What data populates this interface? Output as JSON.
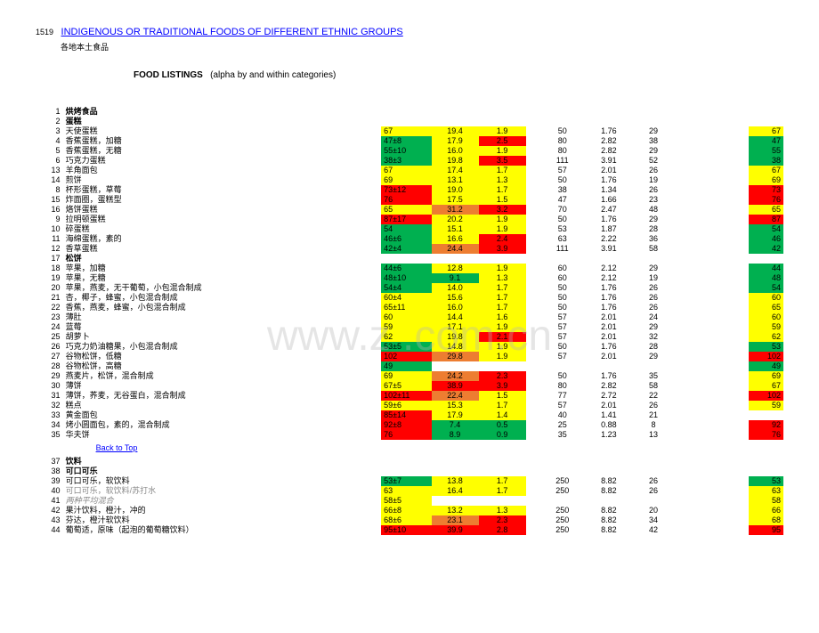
{
  "colors": {
    "green": "#00b050",
    "yellow": "#ffff00",
    "red": "#ff0000",
    "orange": "#ed7d31"
  },
  "header": {
    "num": "1519",
    "link": "INDIGENOUS OR TRADITIONAL FOODS OF DIFFERENT ETHNIC GROUPS",
    "sub": "各地本土食品"
  },
  "listing_title": {
    "bold": "FOOD LISTINGS",
    "rest": "(alpha by and within categories)"
  },
  "watermark": "www.z .com.cn",
  "back_to_top": "Back to Top",
  "rows": [
    {
      "n": "1",
      "name": "烘烤食品",
      "cat": true
    },
    {
      "n": "2",
      "name": "蛋糕",
      "cat": true
    },
    {
      "n": "3",
      "name": "天使蛋糕",
      "v1": "67",
      "c1": "yellow",
      "v2": "19.4",
      "c2": "yellow",
      "v3": "1.9",
      "c3": "yellow",
      "v4": "50",
      "v5": "1.76",
      "v6": "29",
      "v7": "67",
      "c7": "yellow"
    },
    {
      "n": "4",
      "name": "香蕉蛋糕，加糖",
      "v1": "47±8",
      "c1": "green",
      "v2": "17.9",
      "c2": "yellow",
      "v3": "2.5",
      "c3": "red",
      "v4": "80",
      "v5": "2.82",
      "v6": "38",
      "v7": "47",
      "c7": "green"
    },
    {
      "n": "5",
      "name": "香蕉蛋糕，无糖",
      "v1": "55±10",
      "c1": "green",
      "v2": "16.0",
      "c2": "yellow",
      "v3": "1.9",
      "c3": "yellow",
      "v4": "80",
      "v5": "2.82",
      "v6": "29",
      "v7": "55",
      "c7": "green"
    },
    {
      "n": "6",
      "name": "巧克力蛋糕",
      "v1": "38±3",
      "c1": "green",
      "v2": "19.8",
      "c2": "yellow",
      "v3": "3.5",
      "c3": "red",
      "v4": "111",
      "v5": "3.91",
      "v6": "52",
      "v7": "38",
      "c7": "green"
    },
    {
      "n": "13",
      "name": "羊角面包",
      "v1": "67",
      "c1": "yellow",
      "v2": "17.4",
      "c2": "yellow",
      "v3": "1.7",
      "c3": "yellow",
      "v4": "57",
      "v5": "2.01",
      "v6": "26",
      "v7": "67",
      "c7": "yellow"
    },
    {
      "n": "14",
      "name": "煎饼",
      "v1": "69",
      "c1": "yellow",
      "v2": "13.1",
      "c2": "yellow",
      "v3": "1.3",
      "c3": "yellow",
      "v4": "50",
      "v5": "1.76",
      "v6": "19",
      "v7": "69",
      "c7": "yellow"
    },
    {
      "n": "8",
      "name": "杯形蛋糕，草莓",
      "v1": "73±12",
      "c1": "red",
      "v2": "19.0",
      "c2": "yellow",
      "v3": "1.7",
      "c3": "yellow",
      "v4": "38",
      "v5": "1.34",
      "v6": "26",
      "v7": "73",
      "c7": "red"
    },
    {
      "n": "15",
      "name": "炸面圈，蛋糕型",
      "v1": "76",
      "c1": "red",
      "v2": "17.5",
      "c2": "yellow",
      "v3": "1.5",
      "c3": "yellow",
      "v4": "47",
      "v5": "1.66",
      "v6": "23",
      "v7": "76",
      "c7": "red"
    },
    {
      "n": "16",
      "name": "烙饼蛋糕",
      "v1": "65",
      "c1": "yellow",
      "v2": "31.2",
      "c2": "orange",
      "v3": "3.2",
      "c3": "red",
      "v4": "70",
      "v5": "2.47",
      "v6": "48",
      "v7": "65",
      "c7": "yellow"
    },
    {
      "n": "9",
      "name": "拉明顿蛋糕",
      "v1": "87±17",
      "c1": "red",
      "v2": "20.2",
      "c2": "yellow",
      "v3": "1.9",
      "c3": "yellow",
      "v4": "50",
      "v5": "1.76",
      "v6": "29",
      "v7": "87",
      "c7": "red"
    },
    {
      "n": "10",
      "name": "碎蛋糕",
      "v1": "54",
      "c1": "green",
      "v2": "15.1",
      "c2": "yellow",
      "v3": "1.9",
      "c3": "yellow",
      "v4": "53",
      "v5": "1.87",
      "v6": "28",
      "v7": "54",
      "c7": "green"
    },
    {
      "n": "11",
      "name": "海绵蛋糕，素的",
      "v1": "46±6",
      "c1": "green",
      "v2": "16.6",
      "c2": "yellow",
      "v3": "2.4",
      "c3": "red",
      "v4": "63",
      "v5": "2.22",
      "v6": "36",
      "v7": "46",
      "c7": "green"
    },
    {
      "n": "12",
      "name": "香草蛋糕",
      "v1": "42±4",
      "c1": "green",
      "v2": "24.4",
      "c2": "orange",
      "v3": "3.9",
      "c3": "red",
      "v4": "111",
      "v5": "3.91",
      "v6": "58",
      "v7": "42",
      "c7": "green"
    },
    {
      "n": "17",
      "name": "松饼",
      "cat": true
    },
    {
      "n": "18",
      "name": "苹果，加糖",
      "v1": "44±6",
      "c1": "green",
      "v2": "12.8",
      "c2": "yellow",
      "v3": "1.9",
      "c3": "yellow",
      "v4": "60",
      "v5": "2.12",
      "v6": "29",
      "v7": "44",
      "c7": "green"
    },
    {
      "n": "19",
      "name": "苹果，无糖",
      "v1": "48±10",
      "c1": "green",
      "v2": "9.1",
      "c2": "green",
      "v3": "1.3",
      "c3": "yellow",
      "v4": "60",
      "v5": "2.12",
      "v6": "19",
      "v7": "48",
      "c7": "green"
    },
    {
      "n": "20",
      "name": "苹果，燕麦，无干葡萄，小包混合制成",
      "v1": "54±4",
      "c1": "green",
      "v2": "14.0",
      "c2": "yellow",
      "v3": "1.7",
      "c3": "yellow",
      "v4": "50",
      "v5": "1.76",
      "v6": "26",
      "v7": "54",
      "c7": "green"
    },
    {
      "n": "21",
      "name": "杏，椰子，蜂蜜，小包混合制成",
      "v1": "60±4",
      "c1": "yellow",
      "v2": "15.6",
      "c2": "yellow",
      "v3": "1.7",
      "c3": "yellow",
      "v4": "50",
      "v5": "1.76",
      "v6": "26",
      "v7": "60",
      "c7": "yellow"
    },
    {
      "n": "22",
      "name": "香蕉，燕麦，蜂蜜，小包混合制成",
      "v1": "65±11",
      "c1": "yellow",
      "v2": "16.0",
      "c2": "yellow",
      "v3": "1.7",
      "c3": "yellow",
      "v4": "50",
      "v5": "1.76",
      "v6": "26",
      "v7": "65",
      "c7": "yellow"
    },
    {
      "n": "23",
      "name": "薄肚",
      "v1": "60",
      "c1": "yellow",
      "v2": "14.4",
      "c2": "yellow",
      "v3": "1.6",
      "c3": "yellow",
      "v4": "57",
      "v5": "2.01",
      "v6": "24",
      "v7": "60",
      "c7": "yellow"
    },
    {
      "n": "24",
      "name": "蓝莓",
      "v1": "59",
      "c1": "yellow",
      "v2": "17.1",
      "c2": "yellow",
      "v3": "1.9",
      "c3": "yellow",
      "v4": "57",
      "v5": "2.01",
      "v6": "29",
      "v7": "59",
      "c7": "yellow"
    },
    {
      "n": "25",
      "name": "胡萝卜",
      "v1": "62",
      "c1": "yellow",
      "v2": "19.8",
      "c2": "yellow",
      "v3": "2.1",
      "c3": "red",
      "v4": "57",
      "v5": "2.01",
      "v6": "32",
      "v7": "62",
      "c7": "yellow"
    },
    {
      "n": "26",
      "name": "巧克力奶油糖果，小包混合制成",
      "v1": "53±5",
      "c1": "green",
      "v2": "14.8",
      "c2": "yellow",
      "v3": "1.9",
      "c3": "yellow",
      "v4": "50",
      "v5": "1.76",
      "v6": "28",
      "v7": "53",
      "c7": "green"
    },
    {
      "n": "27",
      "name": "谷物松饼，低糖",
      "v1": "102",
      "c1": "red",
      "v2": "29.8",
      "c2": "orange",
      "v3": "1.9",
      "c3": "yellow",
      "v4": "57",
      "v5": "2.01",
      "v6": "29",
      "v7": "102",
      "c7": "red"
    },
    {
      "n": "28",
      "name": "谷物松饼，高糖",
      "v1": "49",
      "c1": "green",
      "v2": "",
      "c2": "",
      "v3": "",
      "c3": "",
      "v4": "",
      "v5": "",
      "v6": "",
      "v7": "49",
      "c7": "green"
    },
    {
      "n": "29",
      "name": "燕麦片，松饼，混合制成",
      "v1": "69",
      "c1": "yellow",
      "v2": "24.2",
      "c2": "orange",
      "v3": "2.3",
      "c3": "red",
      "v4": "50",
      "v5": "1.76",
      "v6": "35",
      "v7": "69",
      "c7": "yellow"
    },
    {
      "n": "30",
      "name": "薄饼",
      "v1": "67±5",
      "c1": "yellow",
      "v2": "38.9",
      "c2": "red",
      "v3": "3.9",
      "c3": "red",
      "v4": "80",
      "v5": "2.82",
      "v6": "58",
      "v7": "67",
      "c7": "yellow"
    },
    {
      "n": "31",
      "name": "薄饼，荞麦，无谷蛋白，混合制成",
      "v1": "102±11",
      "c1": "red",
      "v2": "22.4",
      "c2": "orange",
      "v3": "1.5",
      "c3": "yellow",
      "v4": "77",
      "v5": "2.72",
      "v6": "22",
      "v7": "102",
      "c7": "red"
    },
    {
      "n": "32",
      "name": "糕点",
      "v1": "59±6",
      "c1": "yellow",
      "v2": "15.3",
      "c2": "yellow",
      "v3": "1.7",
      "c3": "yellow",
      "v4": "57",
      "v5": "2.01",
      "v6": "26",
      "v7": "59",
      "c7": "yellow"
    },
    {
      "n": "33",
      "name": "黄金面包",
      "v1": "85±14",
      "c1": "red",
      "v2": "17.9",
      "c2": "yellow",
      "v3": "1.4",
      "c3": "yellow",
      "v4": "40",
      "v5": "1.41",
      "v6": "21",
      "v7": "",
      "c7": ""
    },
    {
      "n": "34",
      "name": "烤小圆面包，素的，混合制成",
      "v1": "92±8",
      "c1": "red",
      "v2": "7.4",
      "c2": "green",
      "v3": "0.5",
      "c3": "green",
      "v4": "25",
      "v5": "0.88",
      "v6": "8",
      "v7": "92",
      "c7": "red"
    },
    {
      "n": "35",
      "name": "华夫饼",
      "v1": "76",
      "c1": "red",
      "v2": "8.9",
      "c2": "green",
      "v3": "0.9",
      "c3": "green",
      "v4": "35",
      "v5": "1.23",
      "v6": "13",
      "v7": "76",
      "c7": "red"
    },
    {
      "n": "",
      "name": "",
      "back": true
    },
    {
      "n": "37",
      "name": "饮料",
      "cat": true
    },
    {
      "n": "38",
      "name": "可口可乐",
      "cat": true
    },
    {
      "n": "39",
      "name": "可口可乐，软饮料",
      "v1": "53±7",
      "c1": "green",
      "v2": "13.8",
      "c2": "yellow",
      "v3": "1.7",
      "c3": "yellow",
      "v4": "250",
      "v5": "8.82",
      "v6": "26",
      "v7": "53",
      "c7": "green"
    },
    {
      "n": "40",
      "name": "可口可乐，软饮料/苏打水",
      "muted": true,
      "v1": "63",
      "c1": "yellow",
      "v2": "16.4",
      "c2": "yellow",
      "v3": "1.7",
      "c3": "yellow",
      "v4": "250",
      "v5": "8.82",
      "v6": "26",
      "v7": "63",
      "c7": "yellow"
    },
    {
      "n": "41",
      "name": "两种平均混合",
      "muted": true,
      "italic": true,
      "v1": "58±5",
      "c1": "yellow",
      "v2": "",
      "c2": "",
      "v3": "",
      "c3": "",
      "v4": "",
      "v5": "",
      "v6": "",
      "v7": "58",
      "c7": "yellow"
    },
    {
      "n": "42",
      "name": "果汁饮料，橙汁，冲的",
      "v1": "66±8",
      "c1": "yellow",
      "v2": "13.2",
      "c2": "yellow",
      "v3": "1.3",
      "c3": "yellow",
      "v4": "250",
      "v5": "8.82",
      "v6": "20",
      "v7": "66",
      "c7": "yellow"
    },
    {
      "n": "43",
      "name": "芬达，橙汁软饮料",
      "v1": "68±6",
      "c1": "yellow",
      "v2": "23.1",
      "c2": "orange",
      "v3": "2.3",
      "c3": "red",
      "v4": "250",
      "v5": "8.82",
      "v6": "34",
      "v7": "68",
      "c7": "yellow"
    },
    {
      "n": "44",
      "name": "葡萄适，原味（起泡的葡萄糖饮料）",
      "v1": "95±10",
      "c1": "red",
      "v2": "39.9",
      "c2": "red",
      "v3": "2.8",
      "c3": "red",
      "v4": "250",
      "v5": "8.82",
      "v6": "42",
      "v7": "95",
      "c7": "red"
    }
  ]
}
